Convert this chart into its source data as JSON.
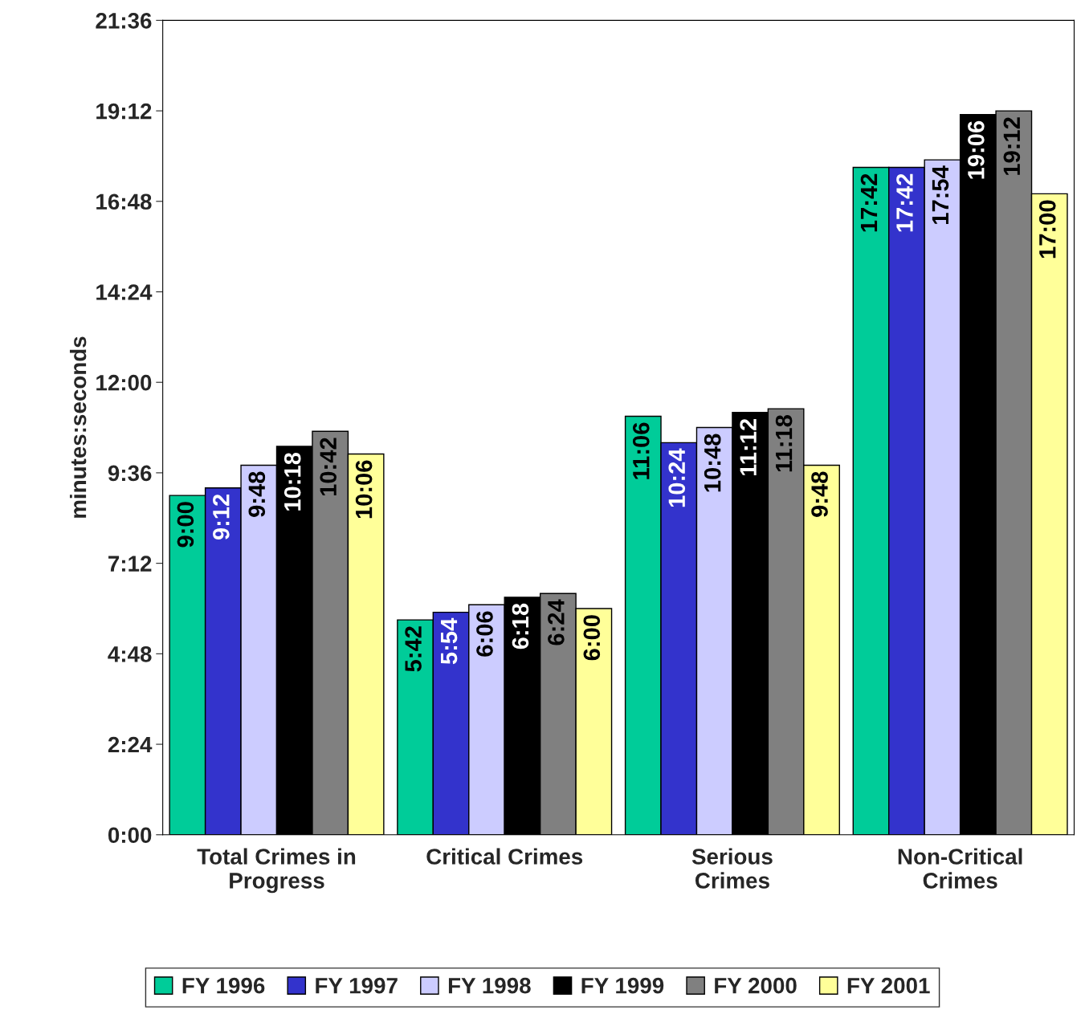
{
  "chart_data": {
    "type": "bar",
    "ylabel": "minutes:seconds",
    "categories": [
      "Total Crimes in\nProgress",
      "Critical Crimes",
      "Serious\nCrimes",
      "Non-Critical\nCrimes"
    ],
    "series": [
      {
        "name": "FY 1996",
        "color": "#00cc99",
        "values": [
          9.0,
          5.7,
          11.1,
          17.7
        ],
        "value_labels": [
          "9:00",
          "5:42",
          "11:06",
          "17:42"
        ]
      },
      {
        "name": "FY 1997",
        "color": "#3333cc",
        "values": [
          9.2,
          5.9,
          10.4,
          17.7
        ],
        "value_labels": [
          "9:12",
          "5:54",
          "10:24",
          "17:42"
        ]
      },
      {
        "name": "FY 1998",
        "color": "#ccccff",
        "values": [
          9.8,
          6.1,
          10.8,
          17.9
        ],
        "value_labels": [
          "9:48",
          "6:06",
          "10:48",
          "17:54"
        ]
      },
      {
        "name": "FY 1999",
        "color": "#000000",
        "values": [
          10.3,
          6.3,
          11.2,
          19.1
        ],
        "value_labels": [
          "10:18",
          "6:18",
          "11:12",
          "19:06"
        ]
      },
      {
        "name": "FY 2000",
        "color": "#808080",
        "values": [
          10.7,
          6.4,
          11.3,
          19.2
        ],
        "value_labels": [
          "10:42",
          "6:24",
          "11:18",
          "19:12"
        ]
      },
      {
        "name": "FY 2001",
        "color": "#ffff99",
        "values": [
          10.1,
          6.0,
          9.8,
          17.0
        ],
        "value_labels": [
          "10:06",
          "6:00",
          "9:48",
          "17:00"
        ]
      }
    ],
    "ylim": [
      0,
      21.6
    ],
    "yticks": [
      {
        "value": 0,
        "label": "0:00"
      },
      {
        "value": 2.4,
        "label": "2:24"
      },
      {
        "value": 4.8,
        "label": "4:48"
      },
      {
        "value": 7.2,
        "label": "7:12"
      },
      {
        "value": 9.6,
        "label": "9:36"
      },
      {
        "value": 12,
        "label": "12:00"
      },
      {
        "value": 14.4,
        "label": "14:24"
      },
      {
        "value": 16.8,
        "label": "16:48"
      },
      {
        "value": 19.2,
        "label": "19:12"
      },
      {
        "value": 21.6,
        "label": "21:36"
      }
    ],
    "grid": false,
    "legend": "bottom"
  }
}
